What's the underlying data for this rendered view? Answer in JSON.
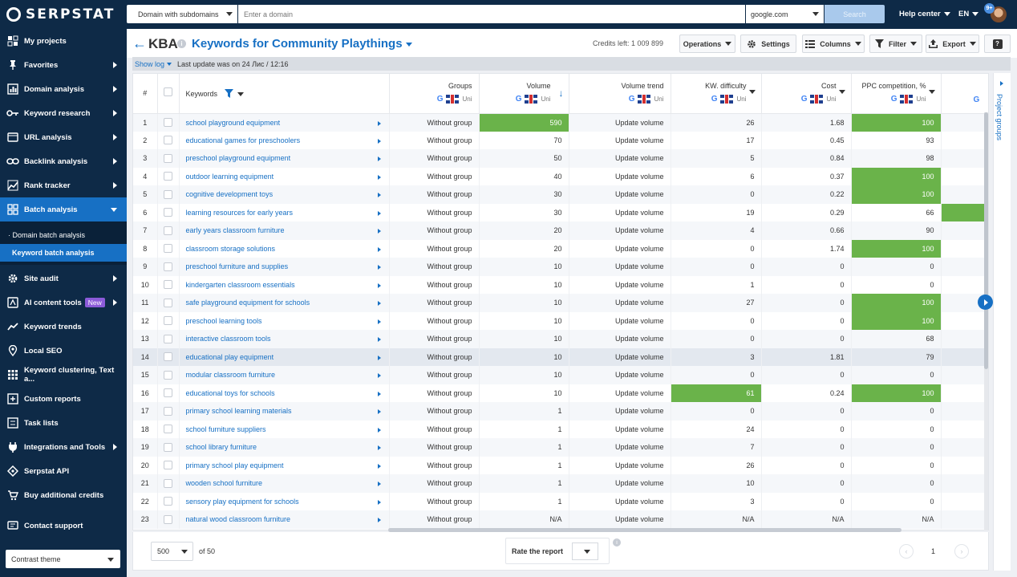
{
  "brand": "SERPSTAT",
  "topbar": {
    "scope": "Domain with subdomains",
    "domain_placeholder": "Enter a domain",
    "engine": "google.com",
    "search_label": "Search",
    "help": "Help center",
    "lang": "EN",
    "notif": "9+"
  },
  "sidebar": {
    "items": [
      {
        "label": "My projects",
        "icon": "folder-icon",
        "arrow": false
      },
      {
        "label": "Favorites",
        "icon": "pin-icon",
        "arrow": true
      },
      {
        "label": "Domain analysis",
        "icon": "chart-icon",
        "arrow": true
      },
      {
        "label": "Keyword research",
        "icon": "key-icon",
        "arrow": true
      },
      {
        "label": "URL analysis",
        "icon": "url-icon",
        "arrow": true
      },
      {
        "label": "Backlink analysis",
        "icon": "link-icon",
        "arrow": true
      },
      {
        "label": "Rank tracker",
        "icon": "tracker-icon",
        "arrow": true
      },
      {
        "label": "Batch analysis",
        "icon": "batch-icon",
        "arrow": true,
        "active": true
      }
    ],
    "sub_items": [
      "· Domain batch analysis",
      "Keyword batch analysis"
    ],
    "items2": [
      {
        "label": "Site audit",
        "icon": "gear-icon",
        "arrow": true
      },
      {
        "label": "AI content tools",
        "icon": "ai-icon",
        "arrow": true,
        "badge": "New"
      },
      {
        "label": "Keyword trends",
        "icon": "trend-icon",
        "arrow": false
      },
      {
        "label": "Local SEO",
        "icon": "location-icon",
        "arrow": false
      },
      {
        "label": "Keyword clustering, Text a...",
        "icon": "grid-icon",
        "arrow": false
      },
      {
        "label": "Custom reports",
        "icon": "report-icon",
        "arrow": false
      },
      {
        "label": "Task lists",
        "icon": "tasks-icon",
        "arrow": false
      },
      {
        "label": "Integrations and Tools",
        "icon": "plug-icon",
        "arrow": true
      },
      {
        "label": "Serpstat API",
        "icon": "api-icon",
        "arrow": false
      },
      {
        "label": "Buy additional credits",
        "icon": "cart-icon",
        "arrow": false
      }
    ],
    "contact": "Contact support",
    "theme": "Contrast theme"
  },
  "header": {
    "code": "KBA",
    "title": "Keywords for Community Playthings",
    "credits": "Credits left: 1 009 899",
    "operations": "Operations",
    "settings": "Settings",
    "columns": "Columns",
    "filter": "Filter",
    "export": "Export",
    "help": "?"
  },
  "logbar": {
    "show_log": "Show log",
    "last_update": "Last update was on 24 Лис / 12:16"
  },
  "table": {
    "columns": [
      "#",
      "Keywords",
      "Groups",
      "Volume",
      "Volume trend",
      "KW. difficulty",
      "Cost",
      "PPC competition, %"
    ],
    "source_label": "Uni",
    "rows": [
      {
        "n": "1",
        "kw": "school playground equipment",
        "group": "Without group",
        "vol": "590",
        "trend": "Update volume",
        "kd": "26",
        "cost": "1.68",
        "ppc": "100"
      },
      {
        "n": "2",
        "kw": "educational games for preschoolers",
        "group": "Without group",
        "vol": "70",
        "trend": "Update volume",
        "kd": "17",
        "cost": "0.45",
        "ppc": "93"
      },
      {
        "n": "3",
        "kw": "preschool playground equipment",
        "group": "Without group",
        "vol": "50",
        "trend": "Update volume",
        "kd": "5",
        "cost": "0.84",
        "ppc": "98"
      },
      {
        "n": "4",
        "kw": "outdoor learning equipment",
        "group": "Without group",
        "vol": "40",
        "trend": "Update volume",
        "kd": "6",
        "cost": "0.37",
        "ppc": "100"
      },
      {
        "n": "5",
        "kw": "cognitive development toys",
        "group": "Without group",
        "vol": "30",
        "trend": "Update volume",
        "kd": "0",
        "cost": "0.22",
        "ppc": "100"
      },
      {
        "n": "6",
        "kw": "learning resources for early years",
        "group": "Without group",
        "vol": "30",
        "trend": "Update volume",
        "kd": "19",
        "cost": "0.29",
        "ppc": "66"
      },
      {
        "n": "7",
        "kw": "early years classroom furniture",
        "group": "Without group",
        "vol": "20",
        "trend": "Update volume",
        "kd": "4",
        "cost": "0.66",
        "ppc": "90"
      },
      {
        "n": "8",
        "kw": "classroom storage solutions",
        "group": "Without group",
        "vol": "20",
        "trend": "Update volume",
        "kd": "0",
        "cost": "1.74",
        "ppc": "100"
      },
      {
        "n": "9",
        "kw": "preschool furniture and supplies",
        "group": "Without group",
        "vol": "10",
        "trend": "Update volume",
        "kd": "0",
        "cost": "0",
        "ppc": "0"
      },
      {
        "n": "10",
        "kw": "kindergarten classroom essentials",
        "group": "Without group",
        "vol": "10",
        "trend": "Update volume",
        "kd": "1",
        "cost": "0",
        "ppc": "0"
      },
      {
        "n": "11",
        "kw": "safe playground equipment for schools",
        "group": "Without group",
        "vol": "10",
        "trend": "Update volume",
        "kd": "27",
        "cost": "0",
        "ppc": "100"
      },
      {
        "n": "12",
        "kw": "preschool learning tools",
        "group": "Without group",
        "vol": "10",
        "trend": "Update volume",
        "kd": "0",
        "cost": "0",
        "ppc": "100"
      },
      {
        "n": "13",
        "kw": "interactive classroom tools",
        "group": "Without group",
        "vol": "10",
        "trend": "Update volume",
        "kd": "0",
        "cost": "0",
        "ppc": "68"
      },
      {
        "n": "14",
        "kw": "educational play equipment",
        "group": "Without group",
        "vol": "10",
        "trend": "Update volume",
        "kd": "3",
        "cost": "1.81",
        "ppc": "79"
      },
      {
        "n": "15",
        "kw": "modular classroom furniture",
        "group": "Without group",
        "vol": "10",
        "trend": "Update volume",
        "kd": "0",
        "cost": "0",
        "ppc": "0"
      },
      {
        "n": "16",
        "kw": "educational toys for schools",
        "group": "Without group",
        "vol": "10",
        "trend": "Update volume",
        "kd": "61",
        "cost": "0.24",
        "ppc": "100"
      },
      {
        "n": "17",
        "kw": "primary school learning materials",
        "group": "Without group",
        "vol": "1",
        "trend": "Update volume",
        "kd": "0",
        "cost": "0",
        "ppc": "0"
      },
      {
        "n": "18",
        "kw": "school furniture suppliers",
        "group": "Without group",
        "vol": "1",
        "trend": "Update volume",
        "kd": "24",
        "cost": "0",
        "ppc": "0"
      },
      {
        "n": "19",
        "kw": "school library furniture",
        "group": "Without group",
        "vol": "1",
        "trend": "Update volume",
        "kd": "7",
        "cost": "0",
        "ppc": "0"
      },
      {
        "n": "20",
        "kw": "primary school play equipment",
        "group": "Without group",
        "vol": "1",
        "trend": "Update volume",
        "kd": "26",
        "cost": "0",
        "ppc": "0"
      },
      {
        "n": "21",
        "kw": "wooden school furniture",
        "group": "Without group",
        "vol": "1",
        "trend": "Update volume",
        "kd": "10",
        "cost": "0",
        "ppc": "0"
      },
      {
        "n": "22",
        "kw": "sensory play equipment for schools",
        "group": "Without group",
        "vol": "1",
        "trend": "Update volume",
        "kd": "3",
        "cost": "0",
        "ppc": "0"
      },
      {
        "n": "23",
        "kw": "natural wood classroom furniture",
        "group": "Without group",
        "vol": "N/A",
        "trend": "Update volume",
        "kd": "N/A",
        "cost": "N/A",
        "ppc": "N/A"
      }
    ]
  },
  "right_panel": {
    "label": "Project groups"
  },
  "footer": {
    "per_page": "500",
    "of": "of 50",
    "rate": "Rate the report",
    "page": "1"
  },
  "colors": {
    "sidebar": "#0e2a47",
    "accent": "#1770c4",
    "highlight": "#6ab34a"
  }
}
